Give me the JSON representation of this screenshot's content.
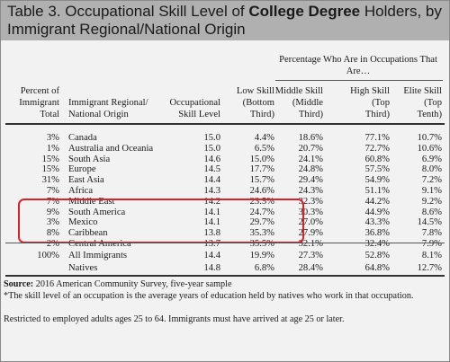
{
  "title": {
    "prefix": "Table 3. Occupational Skill Level of ",
    "bold": "College Degree",
    "suffix": " Holders, by Immigrant Regional/National Origin"
  },
  "headers": {
    "group": "Percentage Who Are in Occupations That Are…",
    "col1": [
      "Percent of",
      "Immigrant",
      "Total"
    ],
    "col2": [
      "Immigrant Regional/",
      "National Origin"
    ],
    "col3": [
      "Occupational",
      "Skill Level"
    ],
    "col4": [
      "Low Skill",
      "(Bottom",
      "Third)"
    ],
    "col5": [
      "Middle Skill",
      "(Middle",
      "Third)"
    ],
    "col6": [
      "High Skill",
      "(Top",
      "Third)"
    ],
    "col7": [
      "Elite Skill",
      "(Top",
      "Tenth)"
    ]
  },
  "rows": [
    {
      "pct": "3%",
      "origin": "Canada",
      "skill": "15.0",
      "low": "4.4%",
      "mid": "18.6%",
      "high": "77.1%",
      "elite": "10.7%"
    },
    {
      "pct": "1%",
      "origin": "Australia and Oceania",
      "skill": "15.0",
      "low": "6.5%",
      "mid": "20.7%",
      "high": "72.7%",
      "elite": "10.6%"
    },
    {
      "pct": "15%",
      "origin": "South Asia",
      "skill": "14.6",
      "low": "15.0%",
      "mid": "24.1%",
      "high": "60.8%",
      "elite": "6.9%"
    },
    {
      "pct": "15%",
      "origin": "Europe",
      "skill": "14.5",
      "low": "17.7%",
      "mid": "24.8%",
      "high": "57.5%",
      "elite": "8.0%"
    },
    {
      "pct": "31%",
      "origin": "East Asia",
      "skill": "14.4",
      "low": "15.7%",
      "mid": "29.4%",
      "high": "54.9%",
      "elite": "7.2%"
    },
    {
      "pct": "7%",
      "origin": "Africa",
      "skill": "14.3",
      "low": "24.6%",
      "mid": "24.3%",
      "high": "51.1%",
      "elite": "9.1%"
    },
    {
      "pct": "7%",
      "origin": "Middle East",
      "skill": "14.2",
      "low": "23.5%",
      "mid": "32.3%",
      "high": "44.2%",
      "elite": "9.2%"
    },
    {
      "pct": "9%",
      "origin": "South America",
      "skill": "14.1",
      "low": "24.7%",
      "mid": "30.3%",
      "high": "44.9%",
      "elite": "8.6%"
    },
    {
      "pct": "3%",
      "origin": "Mexico",
      "skill": "14.1",
      "low": "29.7%",
      "mid": "27.0%",
      "high": "43.3%",
      "elite": "14.5%"
    },
    {
      "pct": "8%",
      "origin": "Caribbean",
      "skill": "13.8",
      "low": "35.3%",
      "mid": "27.9%",
      "high": "36.8%",
      "elite": "7.8%"
    },
    {
      "pct": "2%",
      "origin": "Central America",
      "skill": "13.7",
      "low": "35.5%",
      "mid": "32.1%",
      "high": "32.4%",
      "elite": "7.9%"
    }
  ],
  "totals": [
    {
      "pct": "100%",
      "origin": "All Immigrants",
      "skill": "14.4",
      "low": "19.9%",
      "mid": "27.3%",
      "high": "52.8%",
      "elite": "8.1%"
    },
    {
      "pct": "",
      "origin": "Natives",
      "skill": "14.8",
      "low": "6.8%",
      "mid": "28.4%",
      "high": "64.8%",
      "elite": "12.7%"
    }
  ],
  "footer": {
    "source_label": "Source:",
    "source_text": " 2016 American Community Survey, five-year sample",
    "note1": "*The skill level of an occupation is the average years of education held by natives who work in that occupation.",
    "note2": "Restricted to employed adults ages 25 to 64. Immigrants must have arrived at age 25 or later."
  },
  "colors": {
    "title_bar": "#b0b0b0",
    "background": "#f2f2f2",
    "highlight": "#d8232a"
  }
}
